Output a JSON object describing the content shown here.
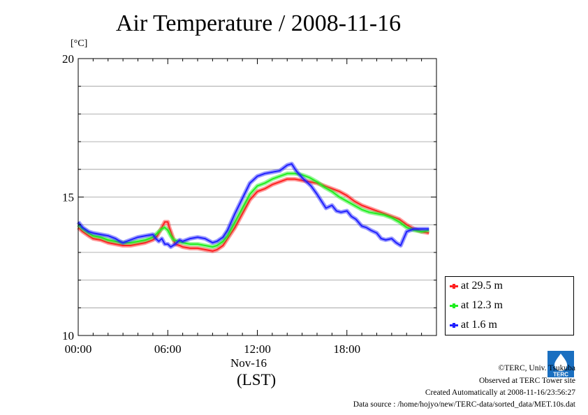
{
  "header": {
    "title": "Air Temperature / 2008-11-16",
    "unit": "[°C]"
  },
  "axis": {
    "date_label": "Nov-16",
    "tz_label": "(LST)"
  },
  "legend": {
    "items": [
      {
        "label": "at 29.5 m",
        "color": "#ff2020"
      },
      {
        "label": "at 12.3 m",
        "color": "#20ee20"
      },
      {
        "label": "at 1.6 m",
        "color": "#2020ff"
      }
    ]
  },
  "footer": {
    "copyright": "©TERC, Univ. Tsukuba",
    "observed": "Observed at TERC Tower site",
    "created": "Created Automatically at 2008-11-16/23:56:27",
    "source": "Data source : /home/hojyo/new/TERC-data/sorted_data/MET.10s.dat",
    "logo_text": "TERC"
  },
  "chart_data": {
    "type": "line",
    "title": "Air Temperature / 2008-11-16",
    "ylabel": "[°C]",
    "xlabel": "Nov-16",
    "xlim": [
      0,
      24
    ],
    "ylim": [
      10,
      20
    ],
    "grid": true,
    "legend_position": "bottom-right, outside plot",
    "x_ticks": [
      "00:00",
      "06:00",
      "12:00",
      "18:00"
    ],
    "y_ticks": [
      "10",
      "15",
      "20"
    ],
    "series": [
      {
        "name": "at 29.5 m",
        "color": "#ff2020",
        "x": [
          0,
          0.3,
          0.7,
          1.0,
          1.5,
          2.0,
          2.5,
          3.0,
          3.5,
          4.0,
          4.5,
          5.0,
          5.3,
          5.6,
          5.8,
          6.0,
          6.1,
          6.3,
          6.5,
          6.8,
          7.0,
          7.5,
          8.0,
          8.5,
          9.0,
          9.3,
          9.7,
          10.0,
          10.5,
          11.0,
          11.5,
          12.0,
          12.5,
          13.0,
          13.5,
          14.0,
          14.5,
          15.0,
          15.5,
          16.0,
          16.5,
          17.0,
          17.5,
          18.0,
          18.5,
          19.0,
          19.5,
          20.0,
          20.5,
          21.0,
          21.5,
          22.0,
          22.5,
          23.0,
          23.5
        ],
        "values": [
          13.9,
          13.75,
          13.6,
          13.5,
          13.45,
          13.35,
          13.3,
          13.25,
          13.25,
          13.3,
          13.35,
          13.45,
          13.6,
          13.9,
          14.1,
          14.1,
          13.9,
          13.6,
          13.3,
          13.25,
          13.2,
          13.15,
          13.15,
          13.1,
          13.05,
          13.1,
          13.25,
          13.5,
          13.9,
          14.4,
          14.9,
          15.2,
          15.3,
          15.45,
          15.55,
          15.65,
          15.65,
          15.6,
          15.55,
          15.5,
          15.4,
          15.3,
          15.2,
          15.05,
          14.85,
          14.7,
          14.6,
          14.5,
          14.4,
          14.3,
          14.2,
          14.0,
          13.85,
          13.75,
          13.7
        ]
      },
      {
        "name": "at 12.3 m",
        "color": "#20ee20",
        "x": [
          0,
          0.3,
          0.7,
          1.0,
          1.5,
          2.0,
          2.5,
          3.0,
          3.5,
          4.0,
          4.5,
          5.0,
          5.3,
          5.6,
          5.8,
          6.0,
          6.2,
          6.4,
          6.7,
          7.0,
          7.5,
          8.0,
          8.5,
          9.0,
          9.3,
          9.7,
          10.0,
          10.5,
          11.0,
          11.5,
          12.0,
          12.5,
          13.0,
          13.5,
          14.0,
          14.5,
          15.0,
          15.5,
          16.0,
          16.5,
          17.0,
          17.5,
          18.0,
          18.5,
          19.0,
          19.5,
          20.0,
          20.5,
          21.0,
          21.5,
          22.0,
          22.5,
          23.0,
          23.5
        ],
        "values": [
          14.0,
          13.85,
          13.7,
          13.6,
          13.55,
          13.45,
          13.4,
          13.35,
          13.35,
          13.4,
          13.45,
          13.55,
          13.7,
          13.85,
          13.9,
          13.8,
          13.6,
          13.45,
          13.4,
          13.35,
          13.3,
          13.3,
          13.25,
          13.2,
          13.25,
          13.4,
          13.6,
          14.1,
          14.6,
          15.1,
          15.4,
          15.5,
          15.65,
          15.75,
          15.85,
          15.85,
          15.8,
          15.7,
          15.55,
          15.35,
          15.2,
          15.0,
          14.85,
          14.7,
          14.55,
          14.45,
          14.4,
          14.35,
          14.25,
          14.1,
          13.9,
          13.8,
          13.75,
          13.8
        ]
      },
      {
        "name": "at 1.6 m",
        "color": "#2020ff",
        "x": [
          0,
          0.3,
          0.7,
          1.0,
          1.5,
          2.0,
          2.5,
          2.8,
          3.0,
          3.5,
          4.0,
          4.5,
          5.0,
          5.2,
          5.4,
          5.6,
          5.8,
          6.0,
          6.2,
          6.5,
          6.8,
          7.0,
          7.5,
          8.0,
          8.5,
          9.0,
          9.3,
          9.7,
          10.0,
          10.5,
          11.0,
          11.5,
          12.0,
          12.5,
          13.0,
          13.5,
          14.0,
          14.3,
          14.6,
          15.0,
          15.3,
          15.6,
          16.0,
          16.3,
          16.6,
          17.0,
          17.3,
          17.6,
          18.0,
          18.3,
          18.6,
          19.0,
          19.3,
          19.6,
          20.0,
          20.3,
          20.6,
          21.0,
          21.3,
          21.6,
          21.8,
          22.0,
          22.5,
          23.0,
          23.5
        ],
        "values": [
          14.1,
          13.9,
          13.75,
          13.7,
          13.65,
          13.6,
          13.5,
          13.4,
          13.35,
          13.45,
          13.55,
          13.6,
          13.65,
          13.5,
          13.4,
          13.5,
          13.3,
          13.3,
          13.2,
          13.3,
          13.45,
          13.4,
          13.5,
          13.55,
          13.5,
          13.35,
          13.4,
          13.55,
          13.8,
          14.4,
          14.95,
          15.5,
          15.75,
          15.85,
          15.9,
          15.95,
          16.15,
          16.2,
          15.95,
          15.7,
          15.55,
          15.4,
          15.1,
          14.85,
          14.6,
          14.7,
          14.5,
          14.45,
          14.5,
          14.3,
          14.2,
          13.95,
          13.9,
          13.8,
          13.7,
          13.5,
          13.45,
          13.5,
          13.35,
          13.25,
          13.5,
          13.75,
          13.85,
          13.85,
          13.85
        ]
      }
    ]
  }
}
